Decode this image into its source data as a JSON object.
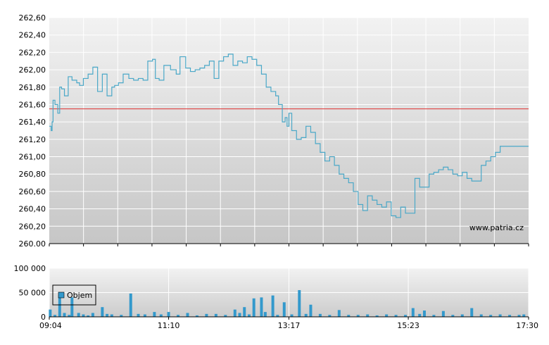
{
  "chart_data": [
    {
      "type": "line",
      "y_ticks": [
        "262,60",
        "262,40",
        "262,20",
        "262,00",
        "261,80",
        "261,60",
        "261,40",
        "261,20",
        "261,00",
        "260,80",
        "260,60",
        "260,40",
        "260,20",
        "260.00"
      ],
      "ylim": [
        260.0,
        262.6
      ],
      "x_ticks": [
        "09:04",
        "11:10",
        "13:17",
        "15:23",
        "17:30"
      ],
      "xlim_minutes": [
        544,
        1050
      ],
      "reference_line": 261.55,
      "watermark": "www.patria.cz",
      "grid": true,
      "colors": {
        "price": "#4aa8c8",
        "reference": "#e03030",
        "grid": "#ffffff"
      },
      "series": [
        {
          "x": [
            "09:04",
            "09:06",
            "09:07",
            "09:08",
            "09:10",
            "09:13",
            "09:15",
            "09:17",
            "09:20",
            "09:24",
            "09:28",
            "09:33",
            "09:36",
            "09:40",
            "09:45",
            "09:50",
            "09:55",
            "10:00",
            "10:05",
            "10:10",
            "10:13",
            "10:17",
            "10:22",
            "10:28",
            "10:33",
            "10:38",
            "10:43",
            "10:48",
            "10:53",
            "10:56",
            "11:00",
            "11:05",
            "11:12",
            "11:18",
            "11:22",
            "11:28",
            "11:33",
            "11:38",
            "11:43",
            "11:48",
            "11:53",
            "11:58",
            "12:03",
            "12:08",
            "12:13",
            "12:18",
            "12:23",
            "12:28",
            "12:33",
            "12:38",
            "12:43",
            "12:48",
            "12:53",
            "12:58",
            "13:03",
            "13:06",
            "13:10",
            "13:13",
            "13:15",
            "13:17",
            "13:20",
            "13:25",
            "13:30",
            "13:35",
            "13:40",
            "13:45",
            "13:50",
            "13:55",
            "14:00",
            "14:05",
            "14:10",
            "14:15",
            "14:20",
            "14:25",
            "14:30",
            "14:35",
            "14:40",
            "14:45",
            "14:50",
            "14:55",
            "15:00",
            "15:05",
            "15:10",
            "15:15",
            "15:20",
            "15:25",
            "15:30",
            "15:35",
            "15:40",
            "15:45",
            "15:50",
            "15:55",
            "16:00",
            "16:05",
            "16:10",
            "16:15",
            "16:20",
            "16:25",
            "16:30",
            "16:35",
            "16:40",
            "16:45",
            "16:50",
            "16:55",
            "17:00",
            "17:05",
            "17:10",
            "17:15",
            "17:20",
            "17:25",
            "17:30"
          ],
          "values": [
            261.35,
            261.3,
            261.4,
            261.65,
            261.6,
            261.5,
            261.8,
            261.78,
            261.7,
            261.92,
            261.88,
            261.85,
            261.82,
            261.9,
            261.95,
            262.03,
            261.75,
            261.95,
            261.7,
            261.8,
            261.82,
            261.85,
            261.95,
            261.9,
            261.88,
            261.9,
            261.88,
            262.1,
            262.12,
            261.9,
            261.88,
            262.05,
            262.0,
            261.95,
            262.15,
            262.02,
            261.98,
            262.0,
            262.02,
            262.05,
            262.1,
            261.9,
            262.1,
            262.15,
            262.18,
            262.05,
            262.1,
            262.08,
            262.15,
            262.12,
            262.05,
            261.95,
            261.8,
            261.75,
            261.7,
            261.6,
            261.4,
            261.45,
            261.35,
            261.5,
            261.3,
            261.2,
            261.22,
            261.35,
            261.28,
            261.15,
            261.05,
            260.95,
            261.0,
            260.9,
            260.8,
            260.75,
            260.7,
            260.6,
            260.45,
            260.38,
            260.55,
            260.5,
            260.45,
            260.42,
            260.48,
            260.32,
            260.3,
            260.42,
            260.35,
            260.35,
            260.75,
            260.65,
            260.65,
            260.8,
            260.82,
            260.85,
            260.88,
            260.85,
            260.8,
            260.78,
            260.82,
            260.75,
            260.72,
            260.72,
            260.9,
            260.95,
            261.0,
            261.05,
            261.12,
            261.12,
            261.12,
            261.12,
            261.12,
            261.12,
            261.12
          ]
        }
      ]
    },
    {
      "type": "bar",
      "y_ticks": [
        "100 000",
        "50 000",
        "0"
      ],
      "ylim": [
        0,
        100000
      ],
      "x_ticks": [
        "09:04",
        "11:10",
        "13:17",
        "15:23",
        "17:30"
      ],
      "xlim_minutes": [
        544,
        1050
      ],
      "grid": true,
      "colors": {
        "bars": "#3399cc",
        "grid": "#ffffff"
      },
      "series": [
        {
          "name": "Objem",
          "x": [
            "09:05",
            "09:10",
            "09:15",
            "09:20",
            "09:25",
            "09:28",
            "09:35",
            "09:40",
            "09:45",
            "09:50",
            "10:00",
            "10:05",
            "10:10",
            "10:20",
            "10:30",
            "10:38",
            "10:45",
            "10:55",
            "11:02",
            "11:10",
            "11:20",
            "11:30",
            "11:40",
            "11:50",
            "12:00",
            "12:10",
            "12:20",
            "12:25",
            "12:30",
            "12:35",
            "12:40",
            "12:48",
            "12:52",
            "13:00",
            "13:05",
            "13:12",
            "13:20",
            "13:28",
            "13:35",
            "13:40",
            "13:50",
            "14:00",
            "14:10",
            "14:20",
            "14:30",
            "14:40",
            "14:50",
            "15:00",
            "15:10",
            "15:20",
            "15:28",
            "15:35",
            "15:40",
            "15:50",
            "16:00",
            "16:10",
            "16:20",
            "16:30",
            "16:40",
            "16:50",
            "17:00",
            "17:10",
            "17:20",
            "17:25"
          ],
          "values": [
            15000,
            4000,
            45000,
            8000,
            4000,
            40000,
            8000,
            5000,
            3000,
            8000,
            20000,
            6000,
            5000,
            4000,
            48000,
            6000,
            5000,
            10000,
            5000,
            10000,
            4000,
            8000,
            3000,
            6000,
            6000,
            4000,
            15000,
            8000,
            20000,
            5000,
            38000,
            40000,
            10000,
            44000,
            4000,
            30000,
            5000,
            55000,
            6000,
            25000,
            6000,
            4000,
            14000,
            4000,
            4000,
            5000,
            3000,
            5000,
            4000,
            4000,
            18000,
            6000,
            13000,
            4000,
            12000,
            4000,
            5000,
            18000,
            5000,
            4000,
            5000,
            4000,
            4000,
            5000
          ]
        }
      ]
    }
  ]
}
